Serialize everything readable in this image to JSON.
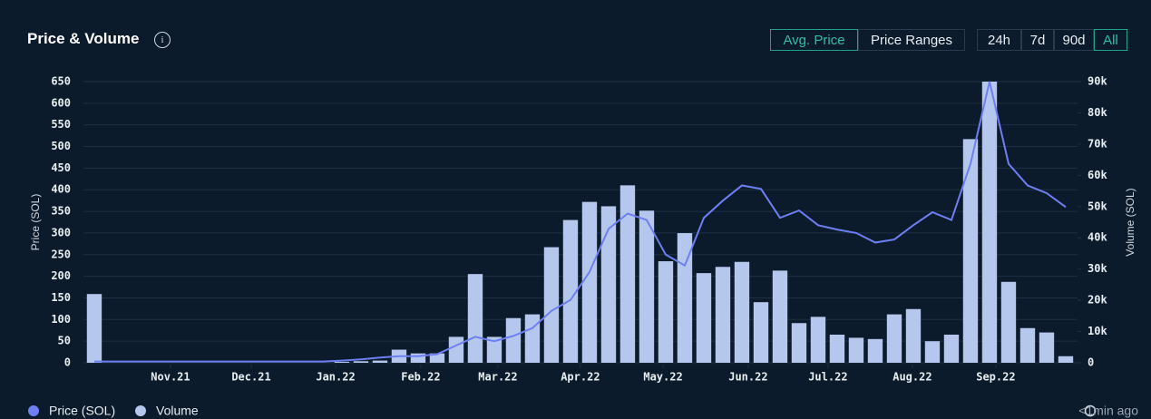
{
  "header": {
    "title": "Price & Volume",
    "modes": [
      "Avg. Price",
      "Price Ranges"
    ],
    "selected_mode": "Avg. Price",
    "ranges": [
      "24h",
      "7d",
      "90d",
      "All"
    ],
    "selected_range": "All"
  },
  "footer": {
    "updated": "<1min ago"
  },
  "chart_data": {
    "type": "combo",
    "x": [
      0,
      1,
      2,
      3,
      4,
      5,
      6,
      7,
      8,
      9,
      10,
      11,
      12,
      13,
      14,
      15,
      16,
      17,
      18,
      19,
      20,
      21,
      22,
      23,
      24,
      25,
      26,
      27,
      28,
      29,
      30,
      31,
      32,
      33,
      34,
      35,
      36,
      37,
      38,
      39,
      40,
      41,
      42,
      43,
      44,
      45,
      46,
      47,
      48,
      49,
      50,
      51
    ],
    "xlim": [
      -0.57,
      51.62
    ],
    "xticks": [
      {
        "value": 4.0,
        "label": "Nov.21"
      },
      {
        "value": 8.24,
        "label": "Dec.21"
      },
      {
        "value": 12.67,
        "label": "Jan.22"
      },
      {
        "value": 17.14,
        "label": "Feb.22"
      },
      {
        "value": 21.19,
        "label": "Mar.22"
      },
      {
        "value": 25.52,
        "label": "Apr.22"
      },
      {
        "value": 29.86,
        "label": "May.22"
      },
      {
        "value": 34.33,
        "label": "Jun.22"
      },
      {
        "value": 38.52,
        "label": "Jul.22"
      },
      {
        "value": 42.95,
        "label": "Aug.22"
      },
      {
        "value": 47.33,
        "label": "Sep.22"
      }
    ],
    "ylabel": "Price (SOL)",
    "ylim": [
      0,
      650
    ],
    "yticks": [
      0,
      50,
      100,
      150,
      200,
      250,
      300,
      350,
      400,
      450,
      500,
      550,
      600,
      650
    ],
    "y2label": "Volume (SOL)",
    "y2lim": [
      0,
      90000
    ],
    "y2ticks": [
      0,
      {
        "value": 10000,
        "label": "10k"
      },
      {
        "value": 20000,
        "label": "20k"
      },
      {
        "value": 30000,
        "label": "30k"
      },
      {
        "value": 40000,
        "label": "40k"
      },
      {
        "value": 50000,
        "label": "50k"
      },
      {
        "value": 60000,
        "label": "60k"
      },
      {
        "value": 70000,
        "label": "70k"
      },
      {
        "value": 80000,
        "label": "80k"
      },
      {
        "value": 90000,
        "label": "90k"
      }
    ],
    "grid": true,
    "legend": "bottom-left",
    "series": [
      {
        "name": "Price (SOL)",
        "type": "line",
        "color": "#6e7ff3",
        "values": [
          3,
          3,
          3,
          3,
          3,
          3,
          3,
          3,
          3,
          3,
          3,
          3,
          3,
          5,
          8,
          12,
          15,
          15,
          20,
          40,
          60,
          50,
          62,
          80,
          120,
          145,
          210,
          310,
          345,
          330,
          250,
          225,
          335,
          375,
          410,
          402,
          335,
          352,
          318,
          308,
          300,
          278,
          285,
          318,
          348,
          330,
          460,
          650,
          460,
          410,
          392,
          360
        ]
      },
      {
        "name": "Volume",
        "type": "bar",
        "axis": "y2",
        "color": "#b6c7ee",
        "values": [
          22000,
          0,
          0,
          0,
          0,
          0,
          0,
          0,
          0,
          0,
          0,
          0,
          0,
          300,
          500,
          700,
          4200,
          3000,
          3000,
          8300,
          28400,
          8300,
          14300,
          15500,
          37000,
          45700,
          51500,
          50100,
          56800,
          48700,
          32500,
          41500,
          28700,
          30700,
          32300,
          19400,
          29500,
          12700,
          14700,
          9000,
          8000,
          7600,
          15500,
          17200,
          6900,
          9000,
          71600,
          90000,
          25900,
          11100,
          9700,
          2100
        ]
      }
    ]
  }
}
